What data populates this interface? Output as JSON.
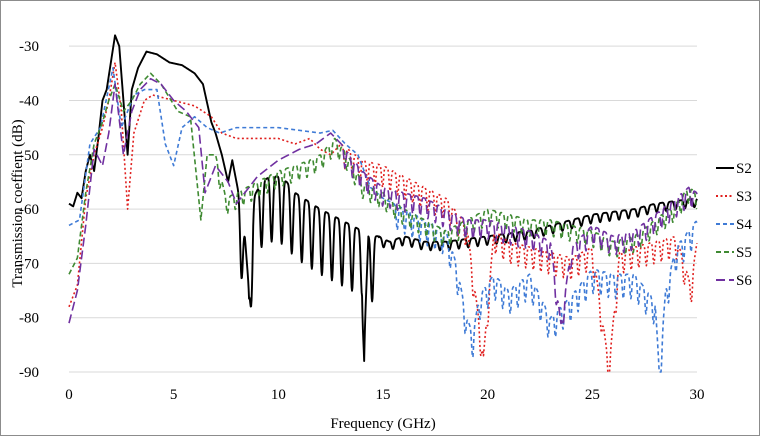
{
  "chart_data": {
    "type": "line",
    "title": "",
    "xlabel": "Frequency (GHz)",
    "ylabel": "Transmission coeffient (dB)",
    "xlim": [
      0,
      30
    ],
    "ylim": [
      -90,
      -25
    ],
    "x_ticks": [
      0,
      5,
      10,
      15,
      20,
      25,
      30
    ],
    "x_tick_labels": [
      "0",
      "5",
      "10",
      "15",
      "20",
      "25",
      "30"
    ],
    "y_ticks": [
      -30,
      -40,
      -50,
      -60,
      -70,
      -80,
      -90
    ],
    "y_tick_labels": [
      "-30",
      "-40",
      "-50",
      "-60",
      "-70",
      "-80",
      "-90"
    ],
    "grid": "horizontal",
    "legend_position": "right",
    "series": [
      {
        "name": "S2",
        "color": "#000000",
        "dash": "solid",
        "points": [
          [
            0,
            -59
          ],
          [
            0.2,
            -59.5
          ],
          [
            0.4,
            -57
          ],
          [
            0.6,
            -58
          ],
          [
            0.8,
            -53
          ],
          [
            1.0,
            -50
          ],
          [
            1.2,
            -53
          ],
          [
            1.4,
            -47
          ],
          [
            1.6,
            -40
          ],
          [
            1.8,
            -38
          ],
          [
            2.0,
            -33
          ],
          [
            2.2,
            -28
          ],
          [
            2.4,
            -30
          ],
          [
            2.6,
            -40
          ],
          [
            2.8,
            -50
          ],
          [
            3.0,
            -38
          ],
          [
            3.3,
            -34
          ],
          [
            3.7,
            -31
          ],
          [
            4.2,
            -31.5
          ],
          [
            4.8,
            -33
          ],
          [
            5.4,
            -33.5
          ],
          [
            6.0,
            -35
          ],
          [
            6.4,
            -37
          ],
          [
            6.8,
            -44
          ],
          [
            7.0,
            -46
          ],
          [
            7.3,
            -50
          ],
          [
            7.6,
            -55
          ],
          [
            7.8,
            -51
          ],
          [
            8.1,
            -57
          ],
          [
            8.4,
            -65
          ],
          [
            8.6,
            -75
          ],
          [
            8.8,
            -58
          ],
          [
            9.2,
            -55
          ],
          [
            9.6,
            -54
          ],
          [
            10.0,
            -54
          ],
          [
            10.4,
            -55
          ],
          [
            10.8,
            -57
          ],
          [
            11.2,
            -58
          ],
          [
            11.6,
            -59
          ],
          [
            12.0,
            -60
          ],
          [
            12.5,
            -61
          ],
          [
            13.0,
            -62
          ],
          [
            13.5,
            -63
          ],
          [
            14.0,
            -64
          ],
          [
            14.1,
            -85
          ],
          [
            14.3,
            -65
          ],
          [
            14.8,
            -65
          ],
          [
            15.3,
            -66
          ],
          [
            16.0,
            -65
          ],
          [
            17.0,
            -66
          ],
          [
            18.0,
            -66
          ],
          [
            19.0,
            -65.5
          ],
          [
            20.0,
            -65
          ],
          [
            21.0,
            -64.5
          ],
          [
            22.0,
            -64
          ],
          [
            23.0,
            -63
          ],
          [
            24.0,
            -62
          ],
          [
            25.0,
            -61
          ],
          [
            26.0,
            -60.5
          ],
          [
            27.0,
            -60
          ],
          [
            28.0,
            -59
          ],
          [
            29.0,
            -58.5
          ],
          [
            30.0,
            -58
          ]
        ],
        "ripple": [
          [
            8.0,
            14.8,
            0.48,
            12
          ],
          [
            14.8,
            30.0,
            0.45,
            1.6
          ]
        ]
      },
      {
        "name": "S3",
        "color": "#e0201f",
        "dash": "2 2.5",
        "points": [
          [
            0,
            -78
          ],
          [
            0.4,
            -74
          ],
          [
            0.8,
            -58
          ],
          [
            1.2,
            -50
          ],
          [
            1.6,
            -45
          ],
          [
            1.9,
            -40
          ],
          [
            2.2,
            -33
          ],
          [
            2.5,
            -42
          ],
          [
            2.8,
            -60
          ],
          [
            3.1,
            -46
          ],
          [
            3.6,
            -40
          ],
          [
            4.0,
            -39
          ],
          [
            5.0,
            -40
          ],
          [
            6.0,
            -41
          ],
          [
            6.8,
            -43
          ],
          [
            7.3,
            -46
          ],
          [
            8.0,
            -47
          ],
          [
            9.0,
            -47
          ],
          [
            10.0,
            -47
          ],
          [
            10.8,
            -48
          ],
          [
            11.5,
            -47
          ],
          [
            12.0,
            -49
          ],
          [
            12.5,
            -50
          ],
          [
            13.0,
            -48
          ],
          [
            14.0,
            -51
          ],
          [
            15.0,
            -52
          ],
          [
            16.0,
            -54
          ],
          [
            17.0,
            -56
          ],
          [
            18.0,
            -58
          ],
          [
            19.0,
            -63
          ],
          [
            19.8,
            -87
          ],
          [
            20.3,
            -64
          ],
          [
            21.0,
            -66
          ],
          [
            22.0,
            -67
          ],
          [
            23.0,
            -68
          ],
          [
            24.0,
            -69
          ],
          [
            25.0,
            -67
          ],
          [
            25.8,
            -89
          ],
          [
            26.3,
            -68
          ],
          [
            27.0,
            -67
          ],
          [
            28.0,
            -66
          ],
          [
            29.0,
            -65
          ],
          [
            29.7,
            -74
          ],
          [
            30.0,
            -66
          ]
        ],
        "ripple": [
          [
            13.0,
            30.0,
            0.36,
            4
          ]
        ]
      },
      {
        "name": "S4",
        "color": "#3f7bd6",
        "dash": "4 3",
        "points": [
          [
            0,
            -63
          ],
          [
            0.5,
            -62
          ],
          [
            1.0,
            -48
          ],
          [
            1.5,
            -45
          ],
          [
            2.1,
            -34
          ],
          [
            2.5,
            -45
          ],
          [
            2.8,
            -42
          ],
          [
            3.1,
            -39
          ],
          [
            3.6,
            -38
          ],
          [
            4.2,
            -38
          ],
          [
            4.6,
            -48
          ],
          [
            5.0,
            -52
          ],
          [
            5.4,
            -45
          ],
          [
            6.0,
            -43
          ],
          [
            6.6,
            -45
          ],
          [
            7.2,
            -46
          ],
          [
            8.0,
            -45
          ],
          [
            9.0,
            -45
          ],
          [
            10.0,
            -45
          ],
          [
            11.0,
            -45.5
          ],
          [
            12.0,
            -46
          ],
          [
            12.6,
            -45.5
          ],
          [
            13.2,
            -48
          ],
          [
            13.8,
            -50
          ],
          [
            14.4,
            -56
          ],
          [
            15.0,
            -58
          ],
          [
            16.0,
            -60
          ],
          [
            17.0,
            -62
          ],
          [
            18.0,
            -64
          ],
          [
            18.5,
            -70
          ],
          [
            19.0,
            -80
          ],
          [
            19.3,
            -83
          ],
          [
            19.6,
            -76
          ],
          [
            20.3,
            -72
          ],
          [
            21.0,
            -75
          ],
          [
            22.0,
            -72
          ],
          [
            23.0,
            -80
          ],
          [
            24.0,
            -76
          ],
          [
            25.0,
            -71
          ],
          [
            26.0,
            -72
          ],
          [
            27.0,
            -72
          ],
          [
            28.0,
            -77
          ],
          [
            28.2,
            -90
          ],
          [
            28.5,
            -75
          ],
          [
            29.0,
            -67
          ],
          [
            30.0,
            -62
          ]
        ],
        "ripple": [
          [
            15.5,
            30.0,
            0.36,
            4.5
          ]
        ]
      },
      {
        "name": "S5",
        "color": "#3f8a32",
        "dash": "5 3",
        "points": [
          [
            0,
            -72
          ],
          [
            0.4,
            -69
          ],
          [
            0.8,
            -57
          ],
          [
            1.2,
            -48
          ],
          [
            1.6,
            -44
          ],
          [
            1.9,
            -40
          ],
          [
            2.2,
            -37
          ],
          [
            2.6,
            -42
          ],
          [
            3.0,
            -40
          ],
          [
            3.4,
            -37
          ],
          [
            3.9,
            -35
          ],
          [
            4.4,
            -37
          ],
          [
            5.2,
            -42
          ],
          [
            5.8,
            -43
          ],
          [
            6.3,
            -62
          ],
          [
            6.6,
            -50
          ],
          [
            7.0,
            -50
          ],
          [
            7.5,
            -58
          ],
          [
            8.0,
            -57
          ],
          [
            9.0,
            -55
          ],
          [
            10.0,
            -53
          ],
          [
            10.8,
            -52
          ],
          [
            11.5,
            -51
          ],
          [
            12.0,
            -50
          ],
          [
            12.7,
            -47
          ],
          [
            13.3,
            -50
          ],
          [
            14.0,
            -55
          ],
          [
            15.0,
            -57
          ],
          [
            16.0,
            -60
          ],
          [
            17.0,
            -62
          ],
          [
            18.0,
            -64
          ],
          [
            19.0,
            -62
          ],
          [
            20.0,
            -60
          ],
          [
            21.0,
            -61
          ],
          [
            22.0,
            -62
          ],
          [
            23.0,
            -62
          ],
          [
            24.0,
            -63
          ],
          [
            25.0,
            -64
          ],
          [
            26.0,
            -66
          ],
          [
            27.0,
            -65
          ],
          [
            28.0,
            -62
          ],
          [
            29.0,
            -59
          ],
          [
            29.6,
            -56
          ],
          [
            30.0,
            -57
          ]
        ],
        "ripple": [
          [
            7.0,
            30.0,
            0.38,
            3
          ]
        ]
      },
      {
        "name": "S6",
        "color": "#7030a0",
        "dash": "9 4",
        "points": [
          [
            0,
            -81
          ],
          [
            0.4,
            -75
          ],
          [
            0.8,
            -63
          ],
          [
            1.2,
            -49
          ],
          [
            1.6,
            -52
          ],
          [
            1.9,
            -46
          ],
          [
            2.2,
            -37
          ],
          [
            2.6,
            -50
          ],
          [
            3.0,
            -42
          ],
          [
            3.4,
            -38
          ],
          [
            3.9,
            -36
          ],
          [
            4.4,
            -37
          ],
          [
            5.0,
            -40
          ],
          [
            5.6,
            -42
          ],
          [
            6.2,
            -45
          ],
          [
            6.5,
            -57
          ],
          [
            7.0,
            -52
          ],
          [
            7.6,
            -55
          ],
          [
            8.0,
            -59
          ],
          [
            9.0,
            -54
          ],
          [
            10.0,
            -51
          ],
          [
            11.0,
            -49
          ],
          [
            11.8,
            -48
          ],
          [
            12.5,
            -46
          ],
          [
            13.0,
            -48
          ],
          [
            14.0,
            -53
          ],
          [
            15.0,
            -56
          ],
          [
            16.0,
            -57
          ],
          [
            17.0,
            -58
          ],
          [
            18.0,
            -60
          ],
          [
            19.0,
            -62
          ],
          [
            20.0,
            -62
          ],
          [
            21.0,
            -63
          ],
          [
            22.0,
            -64
          ],
          [
            23.0,
            -66
          ],
          [
            23.5,
            -81
          ],
          [
            24.0,
            -67
          ],
          [
            25.0,
            -63
          ],
          [
            26.0,
            -65
          ],
          [
            27.0,
            -64
          ],
          [
            28.0,
            -61
          ],
          [
            29.0,
            -58
          ],
          [
            29.6,
            -56
          ],
          [
            30.0,
            -57
          ]
        ],
        "ripple": [
          [
            13.0,
            30.0,
            0.36,
            3.5
          ]
        ]
      }
    ]
  },
  "legend": {
    "items": [
      {
        "label": "S2"
      },
      {
        "label": "S3"
      },
      {
        "label": "S4"
      },
      {
        "label": "S5"
      },
      {
        "label": "S6"
      }
    ]
  }
}
